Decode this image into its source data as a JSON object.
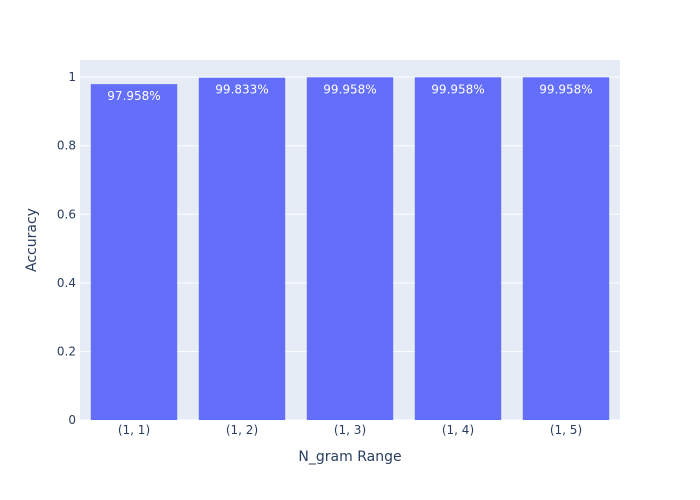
{
  "chart_data": {
    "type": "bar",
    "title": "",
    "xlabel": "N_gram Range",
    "ylabel": "Accuracy",
    "categories": [
      "(1, 1)",
      "(1, 2)",
      "(1, 3)",
      "(1, 4)",
      "(1, 5)"
    ],
    "values": [
      0.97958,
      0.99833,
      0.99958,
      0.99958,
      0.99958
    ],
    "data_labels": [
      "97.958%",
      "99.833%",
      "99.958%",
      "99.958%",
      "99.958%"
    ],
    "ylim": [
      0,
      1.05
    ],
    "yticks": [
      0,
      0.2,
      0.4,
      0.6,
      0.8,
      1
    ],
    "ytick_labels": [
      "0",
      "0.2",
      "0.4",
      "0.6",
      "0.8",
      "1"
    ],
    "grid": true,
    "colors": {
      "bar": "#636efa",
      "plot_bg": "#e5ecf6",
      "grid": "#ffffff",
      "text": "#2a3f5f"
    }
  }
}
